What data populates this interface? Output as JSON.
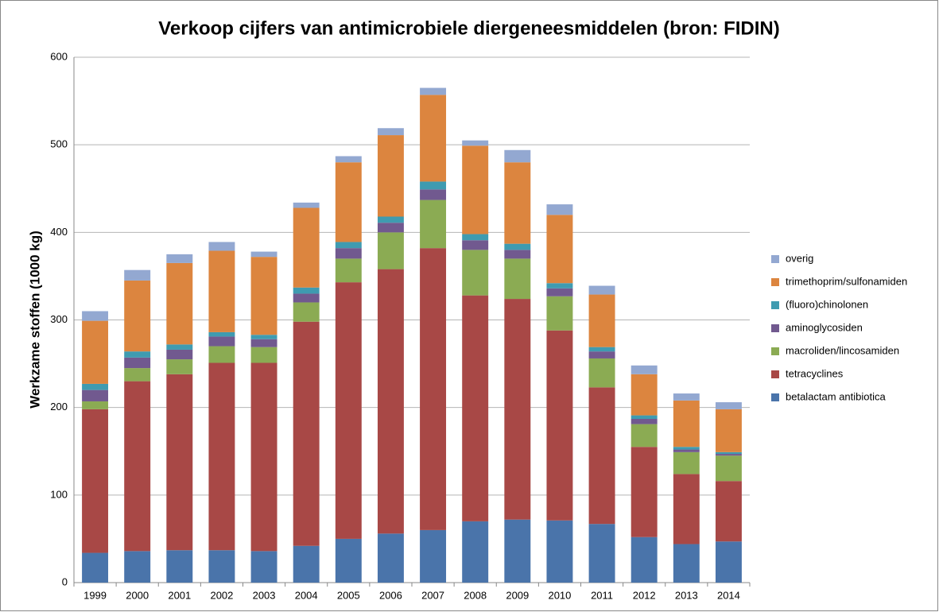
{
  "chart_data": {
    "type": "stacked_bar",
    "title": "Verkoop cijfers van antimicrobiele diergeneesmiddelen (bron: FIDIN)",
    "y_label": "Werkzame stoffen (1000 kg)",
    "categories": [
      "1999",
      "2000",
      "2001",
      "2002",
      "2003",
      "2004",
      "2005",
      "2006",
      "2007",
      "2008",
      "2009",
      "2010",
      "2011",
      "2012",
      "2013",
      "2014"
    ],
    "series": [
      {
        "name": "betalactam antibiotica",
        "color": "#4a74aa",
        "values": [
          34,
          36,
          37,
          37,
          36,
          42,
          50,
          56,
          60,
          70,
          72,
          71,
          67,
          52,
          44,
          47
        ]
      },
      {
        "name": "tetracyclines",
        "color": "#a84846",
        "values": [
          164,
          194,
          201,
          214,
          215,
          256,
          293,
          302,
          322,
          258,
          252,
          217,
          156,
          103,
          80,
          69
        ]
      },
      {
        "name": "macroliden/lincosamiden",
        "color": "#8bab53",
        "values": [
          9,
          15,
          17,
          19,
          18,
          22,
          27,
          42,
          55,
          52,
          46,
          39,
          33,
          26,
          25,
          29
        ]
      },
      {
        "name": "aminoglycosiden",
        "color": "#71598f",
        "values": [
          13,
          12,
          11,
          11,
          9,
          10,
          12,
          11,
          12,
          11,
          10,
          9,
          8,
          6,
          3,
          2
        ]
      },
      {
        "name": "(fluoro)chinolonen",
        "color": "#3f9bb0",
        "values": [
          7,
          7,
          6,
          5,
          5,
          7,
          7,
          7,
          9,
          7,
          7,
          6,
          5,
          4,
          3,
          2
        ]
      },
      {
        "name": "trimethoprim/sulfonamiden",
        "color": "#dc853f",
        "values": [
          72,
          81,
          93,
          93,
          89,
          91,
          91,
          93,
          99,
          101,
          93,
          78,
          60,
          47,
          53,
          49
        ]
      },
      {
        "name": "overig",
        "color": "#93a8d1",
        "values": [
          11,
          12,
          10,
          10,
          6,
          6,
          7,
          8,
          8,
          6,
          14,
          12,
          10,
          10,
          8,
          8
        ]
      }
    ],
    "ylim": [
      0,
      600
    ],
    "yticks": [
      0,
      100,
      200,
      300,
      400,
      500,
      600
    ],
    "grid": true,
    "legend": "right"
  }
}
